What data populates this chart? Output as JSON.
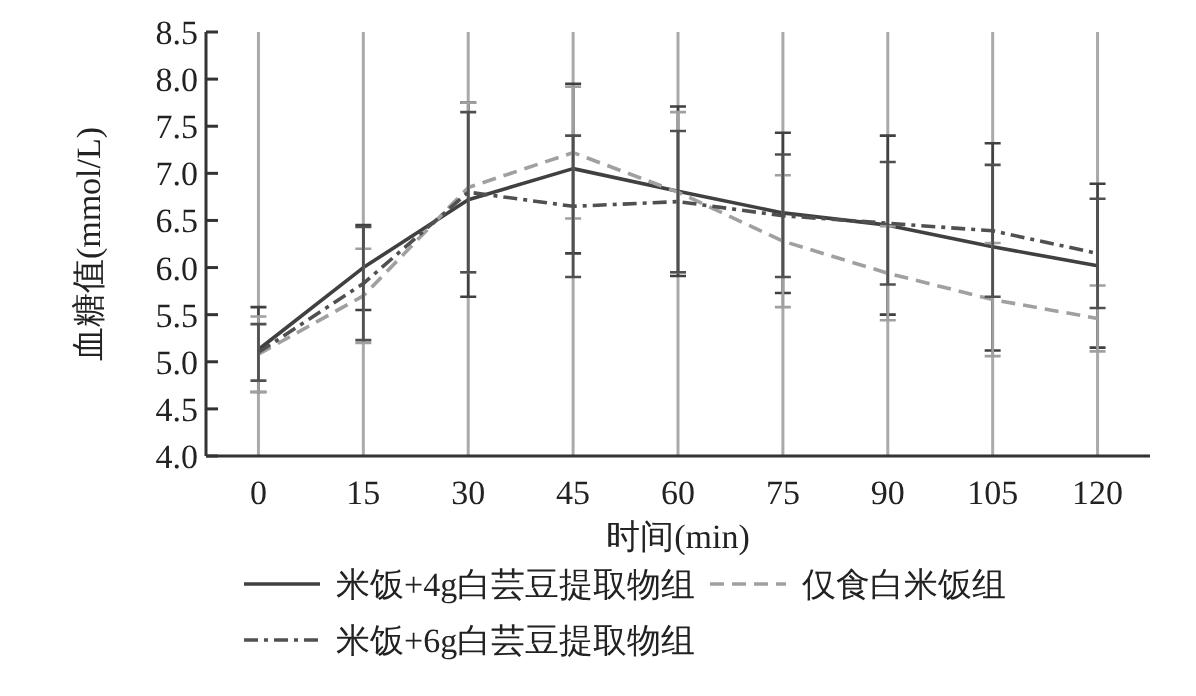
{
  "chart_data": {
    "type": "line",
    "xlabel": "时间(min)",
    "ylabel": "血糖值(mmol/L)",
    "x": [
      0,
      15,
      30,
      45,
      60,
      75,
      90,
      105,
      120
    ],
    "xlim": [
      -7.5,
      127.5
    ],
    "xticks": [
      0,
      15,
      30,
      45,
      60,
      75,
      90,
      105,
      120
    ],
    "ylim": [
      4,
      8.5
    ],
    "yticks": [
      {
        "value": 4,
        "label": "4.0"
      },
      {
        "value": 4.5,
        "label": "4.5"
      },
      {
        "value": 5,
        "label": "5.0"
      },
      {
        "value": 5.5,
        "label": "5.5"
      },
      {
        "value": 6,
        "label": "6.0"
      },
      {
        "value": 6.5,
        "label": "6.5"
      },
      {
        "value": 7,
        "label": "7.0"
      },
      {
        "value": 7.5,
        "label": "7.5"
      },
      {
        "value": 8,
        "label": "8.0"
      },
      {
        "value": 8.5,
        "label": "8.5"
      }
    ],
    "grid": "x",
    "legend": "bottom",
    "series": [
      {
        "name": "米饭+4g白芸豆提取物组",
        "color": "#404040",
        "line_style": "solid",
        "values": [
          5.13,
          6.0,
          6.72,
          7.05,
          6.81,
          6.58,
          6.45,
          6.22,
          6.02
        ],
        "errors": [
          0.45,
          0.45,
          1.03,
          0.9,
          0.9,
          0.85,
          0.95,
          1.1,
          0.87
        ]
      },
      {
        "name": "仅食白米饭组",
        "color": "#a0a0a0",
        "line_style": "dashed",
        "values": [
          5.08,
          5.7,
          6.85,
          7.22,
          6.8,
          6.28,
          5.94,
          5.66,
          5.46
        ],
        "errors": [
          0.4,
          0.5,
          0.9,
          0.7,
          0.85,
          0.7,
          0.5,
          0.6,
          0.35
        ]
      },
      {
        "name": "米饭+6g白芸豆提取物组",
        "color": "#505050",
        "line_style": "dashdot",
        "values": [
          5.1,
          5.83,
          6.8,
          6.65,
          6.7,
          6.55,
          6.47,
          6.39,
          6.15
        ],
        "errors": [
          0.3,
          0.6,
          0.85,
          0.75,
          0.75,
          0.65,
          0.65,
          0.7,
          0.58
        ]
      }
    ]
  }
}
